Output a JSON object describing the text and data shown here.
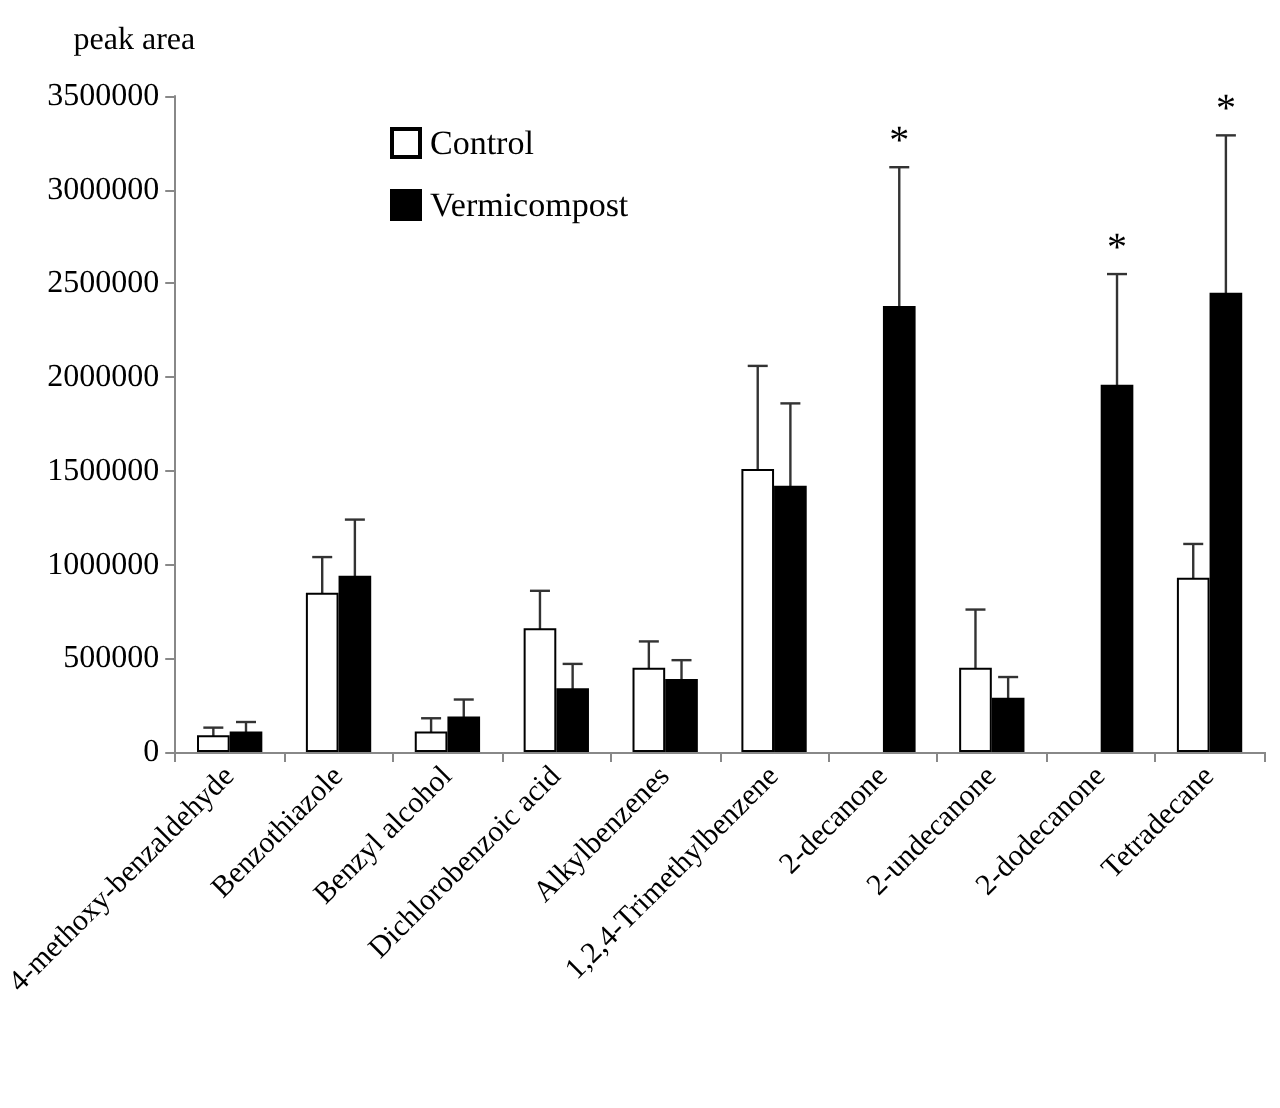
{
  "chart_data": {
    "type": "bar",
    "ylabel": "peak area",
    "categories": [
      "4-methoxy-benzaldehyde",
      "Benzothiazole",
      "Benzyl alcohol",
      "Dichlorobenzoic acid",
      "Alkylbenzenes",
      "1,2,4-Trimethylbenzene",
      "2-decanone",
      "2-undecanone",
      "2-dodecanone",
      "Tetradecane"
    ],
    "series": [
      {
        "name": "Control",
        "color": "#ffffff",
        "values": [
          90000,
          850000,
          110000,
          660000,
          450000,
          1510000,
          null,
          450000,
          null,
          930000
        ],
        "errors": [
          40000,
          190000,
          70000,
          200000,
          140000,
          550000,
          null,
          310000,
          null,
          180000
        ]
      },
      {
        "name": "Vermicompost",
        "color": "#000000",
        "values": [
          110000,
          940000,
          190000,
          340000,
          390000,
          1420000,
          2380000,
          290000,
          1960000,
          2450000
        ],
        "errors": [
          50000,
          300000,
          90000,
          130000,
          100000,
          440000,
          740000,
          110000,
          590000,
          840000
        ]
      }
    ],
    "annotations": [
      {
        "text": "*",
        "x": "2-decanone",
        "y": 3120000
      },
      {
        "text": "*",
        "x": "2-dodecanone",
        "y": 2550000
      },
      {
        "text": "*",
        "x": "Tetradecane",
        "y": 3290000
      }
    ],
    "ylim": [
      0,
      3500000
    ],
    "yticks": [
      0,
      500000,
      1000000,
      1500000,
      2000000,
      2500000,
      3000000,
      3500000
    ],
    "grid": false,
    "legend": "top left"
  }
}
